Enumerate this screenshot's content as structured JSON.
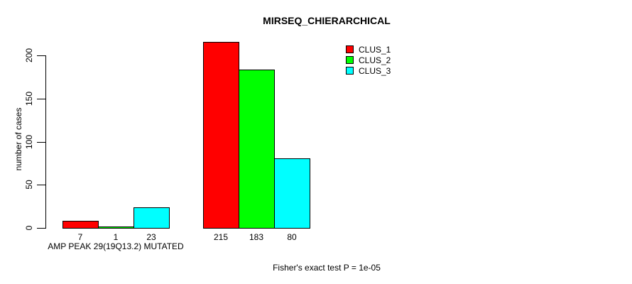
{
  "chart_data": {
    "type": "bar",
    "title": "MIRSEQ_CHIERARCHICAL",
    "ylabel": "number of cases",
    "xlabel": "",
    "ylim": [
      0,
      220
    ],
    "yticks": [
      0,
      50,
      100,
      150,
      200
    ],
    "categories": [
      "AMP PEAK 29(19Q13.2) MUTATED",
      ""
    ],
    "series": [
      {
        "name": "CLUS_1",
        "color": "#ff0000",
        "values": [
          7,
          215
        ]
      },
      {
        "name": "CLUS_2",
        "color": "#00ff00",
        "values": [
          1,
          183
        ]
      },
      {
        "name": "CLUS_3",
        "color": "#00ffff",
        "values": [
          23,
          80
        ]
      }
    ],
    "bar_value_labels": [
      [
        "7",
        "1",
        "23"
      ],
      [
        "215",
        "183",
        "80"
      ]
    ],
    "annotation": "Fisher's exact test P = 1e-05",
    "legend": {
      "position": "top-right",
      "entries": [
        "CLUS_1",
        "CLUS_2",
        "CLUS_3"
      ]
    },
    "grid": false,
    "background_color": "#ffffff",
    "bar_border_color": "#000000"
  }
}
